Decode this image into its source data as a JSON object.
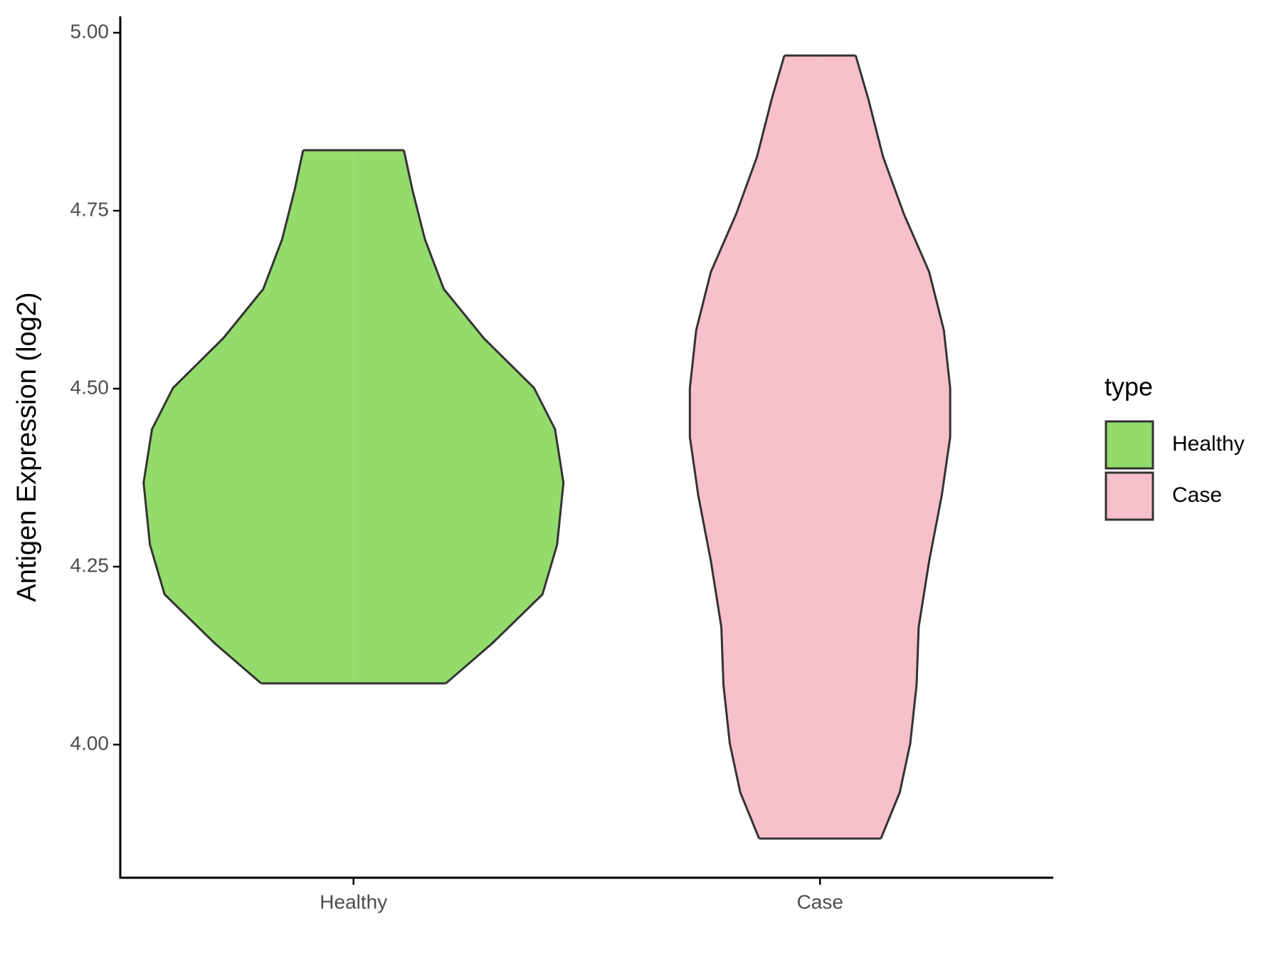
{
  "chart_data": {
    "type": "violin",
    "y_label": "Antigen Expression (log2)",
    "categories": [
      "Healthy",
      "Case"
    ],
    "legend_title": "type",
    "legend_position": "right",
    "series": [
      {
        "name": "Healthy",
        "color": "#93db6b",
        "y": [
          4.086,
          4.142,
          4.211,
          4.281,
          4.368,
          4.443,
          4.501,
          4.571,
          4.64,
          4.71,
          4.78,
          4.835
        ],
        "density": [
          0.44,
          0.66,
          0.9,
          0.97,
          1.0,
          0.96,
          0.86,
          0.62,
          0.43,
          0.34,
          0.28,
          0.24
        ]
      },
      {
        "name": "Case",
        "color": "#f7c0cb",
        "y": [
          3.868,
          3.933,
          4.002,
          4.084,
          4.165,
          4.258,
          4.35,
          4.432,
          4.501,
          4.582,
          4.664,
          4.745,
          4.826,
          4.907,
          4.968
        ],
        "density": [
          0.29,
          0.38,
          0.43,
          0.46,
          0.47,
          0.52,
          0.58,
          0.62,
          0.62,
          0.59,
          0.52,
          0.4,
          0.3,
          0.23,
          0.17
        ]
      }
    ],
    "ylim": [
      3.813,
      5.023
    ],
    "yticks": [
      {
        "value": 4,
        "label": "4.00"
      },
      {
        "value": 4.25,
        "label": "4.25"
      },
      {
        "value": 4.5,
        "label": "4.50"
      },
      {
        "value": 4.75,
        "label": "4.75"
      },
      {
        "value": 5,
        "label": "5.00"
      }
    ],
    "grid": false
  }
}
